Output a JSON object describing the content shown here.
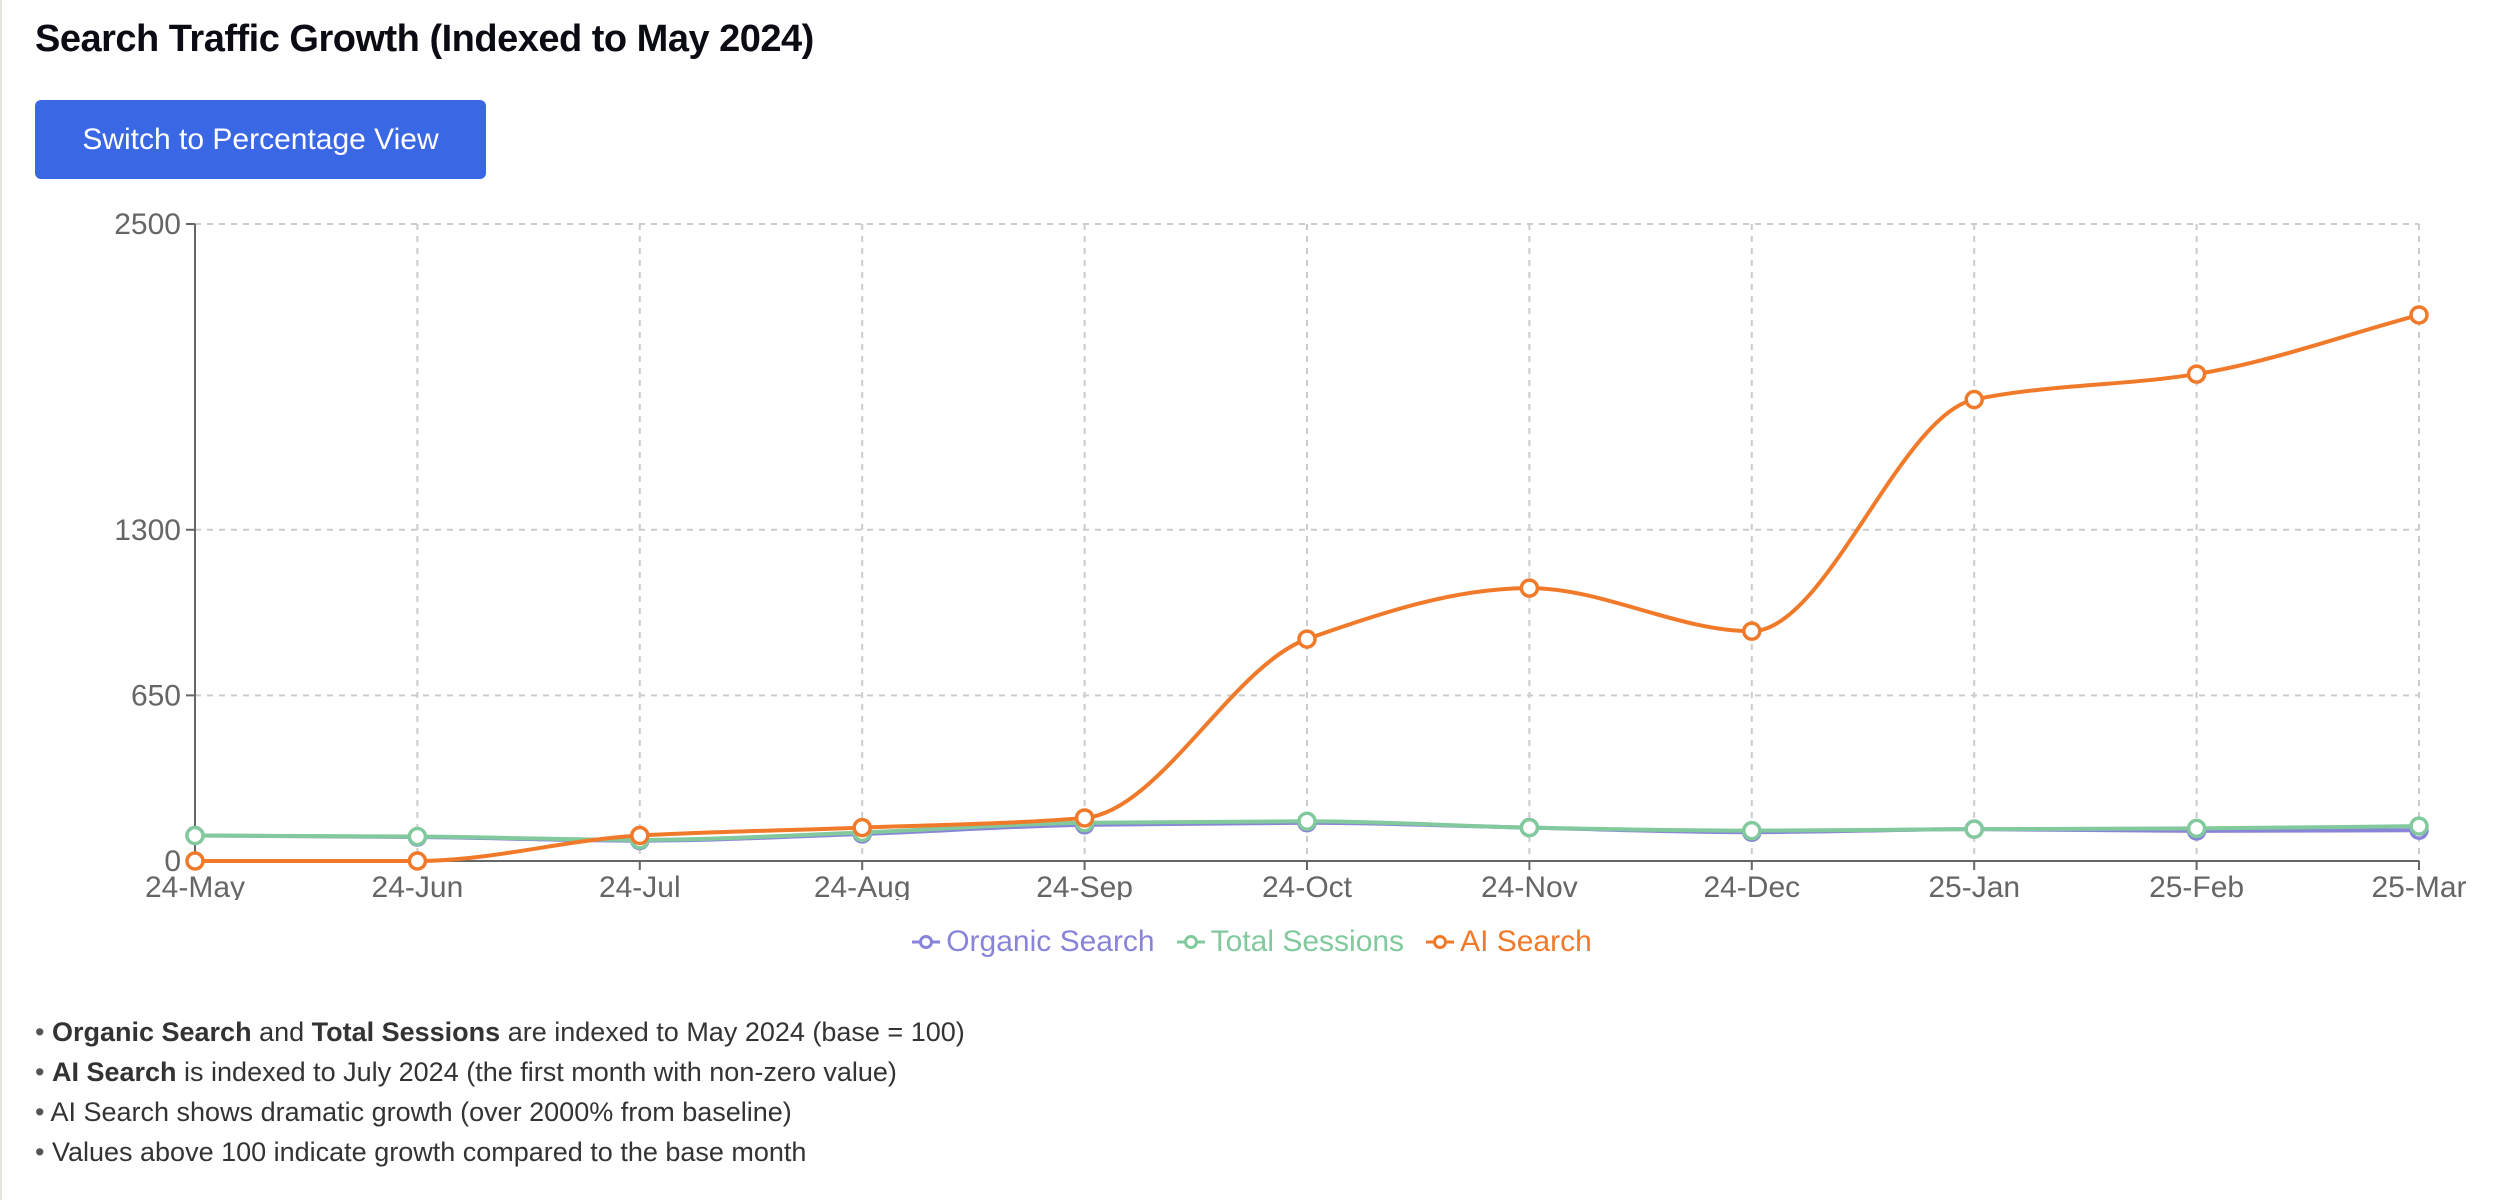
{
  "title": "Search Traffic Growth (Indexed to May 2024)",
  "toggle_button": "Switch to Percentage View",
  "chart_data": {
    "type": "line",
    "categories": [
      "24-May",
      "24-Jun",
      "24-Jul",
      "24-Aug",
      "24-Sep",
      "24-Oct",
      "24-Nov",
      "24-Dec",
      "25-Jan",
      "25-Feb",
      "25-Mar"
    ],
    "yticks": [
      0,
      650,
      1300,
      2500
    ],
    "ylim": [
      0,
      2500
    ],
    "grid": true,
    "legend_position": "bottom",
    "series": [
      {
        "name": "Organic Search",
        "color": "#8884d8",
        "values": [
          100,
          94,
          80,
          106,
          142,
          150,
          131,
          113,
          125,
          118,
          121
        ]
      },
      {
        "name": "Total Sessions",
        "color": "#82ca9d",
        "values": [
          100,
          96,
          83,
          112,
          150,
          156,
          131,
          119,
          125,
          128,
          137
        ]
      },
      {
        "name": "AI Search",
        "color": "#f07a2a",
        "values": [
          0,
          0,
          100,
          131,
          169,
          871,
          1071,
          902,
          1811,
          1911,
          2143
        ]
      }
    ]
  },
  "notes": [
    {
      "bold": "Organic Search",
      "mid": " and ",
      "bold2": "Total Sessions",
      "rest": " are indexed to May 2024 (base = 100)"
    },
    {
      "bold": "AI Search",
      "rest": " is indexed to July 2024 (the first month with non-zero value)"
    },
    {
      "rest": "AI Search shows dramatic growth (over 2000% from baseline)"
    },
    {
      "rest": "Values above 100 indicate growth compared to the base month"
    }
  ]
}
